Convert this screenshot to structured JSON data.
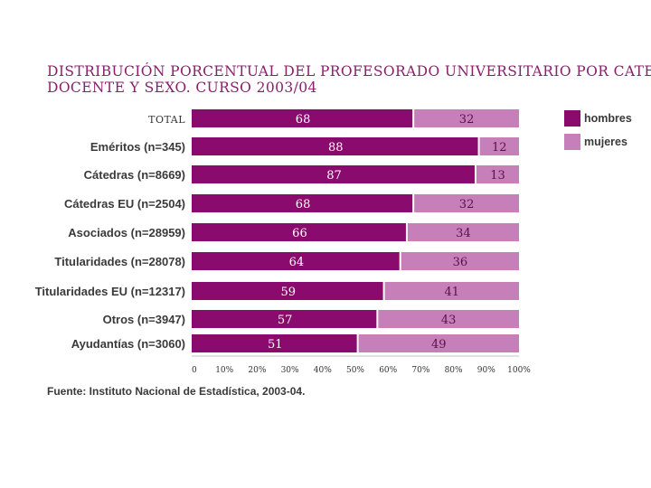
{
  "chart_data": {
    "type": "bar",
    "orientation": "horizontal",
    "stacked": true,
    "title_lines": [
      "DISTRIBUCIÓN PORCENTUAL DEL PROFESORADO UNIVERSITARIO POR CATEGORÍA",
      "DOCENTE Y SEXO. CURSO 2003/04"
    ],
    "categories": [
      "TOTAL",
      "Eméritos (n=345)",
      "Cátedras (n=8669)",
      "Cátedras EU (n=2504)",
      "Asociados (n=28959)",
      "Titularidades (n=28078)",
      "Titularidades EU (n=12317)",
      "Otros (n=3947)",
      "Ayudantías (n=3060)"
    ],
    "series": [
      {
        "name": "hombres",
        "color": "#8b0a6e",
        "label_color": "#ffffff",
        "values": [
          68,
          88,
          87,
          68,
          66,
          64,
          59,
          57,
          51
        ]
      },
      {
        "name": "mujeres",
        "color": "#c77fba",
        "label_color": "#5a1048",
        "values": [
          32,
          12,
          13,
          32,
          34,
          36,
          41,
          43,
          49
        ]
      }
    ],
    "xlim": [
      0,
      100
    ],
    "x_ticks": [
      "0",
      "10%",
      "20%",
      "30%",
      "40%",
      "50%",
      "60%",
      "70%",
      "80%",
      "90%",
      "100%"
    ],
    "legend_position": "top-right",
    "source": "Fuente: Instituto Nacional de Estadística, 2003-04."
  }
}
